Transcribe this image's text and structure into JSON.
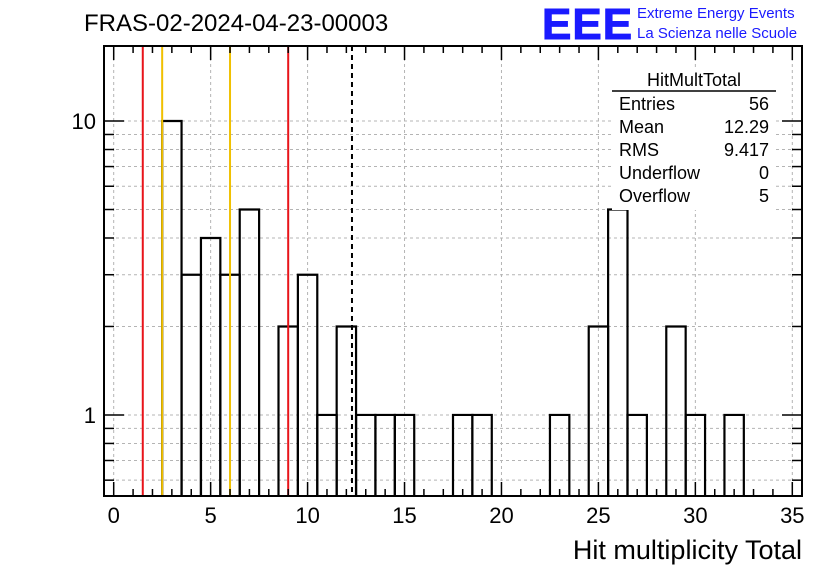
{
  "title": "FRAS-02-2024-04-23-00003",
  "logo": {
    "mark": "EEE",
    "line1": "Extreme Energy Events",
    "line2": "La Scienza nelle Scuole",
    "color": "#1a1aff"
  },
  "stats": {
    "name": "HitMultTotal",
    "rows": [
      {
        "label": "Entries",
        "value": "56"
      },
      {
        "label": "Mean",
        "value": "12.29"
      },
      {
        "label": "RMS",
        "value": "9.417"
      },
      {
        "label": "Underflow",
        "value": "0"
      },
      {
        "label": "Overflow",
        "value": "5"
      }
    ]
  },
  "chart_data": {
    "type": "histogram",
    "title": "FRAS-02-2024-04-23-00003",
    "xlabel": "Hit multiplicity Total",
    "ylabel": "",
    "x_scale": "linear",
    "y_scale": "log",
    "xlim": [
      -0.5,
      35.5
    ],
    "ylim": [
      0.53,
      18
    ],
    "grid": true,
    "x_ticks": [
      0,
      5,
      10,
      15,
      20,
      25,
      30,
      35
    ],
    "y_ticks": [
      1,
      10
    ],
    "bin_width": 1,
    "bins": [
      {
        "x0": 2.5,
        "x1": 3.5,
        "count": 10
      },
      {
        "x0": 3.5,
        "x1": 4.5,
        "count": 3
      },
      {
        "x0": 4.5,
        "x1": 5.5,
        "count": 4
      },
      {
        "x0": 5.5,
        "x1": 6.5,
        "count": 3
      },
      {
        "x0": 6.5,
        "x1": 7.5,
        "count": 5
      },
      {
        "x0": 8.5,
        "x1": 9.5,
        "count": 2
      },
      {
        "x0": 9.5,
        "x1": 10.5,
        "count": 3
      },
      {
        "x0": 10.5,
        "x1": 11.5,
        "count": 1
      },
      {
        "x0": 11.5,
        "x1": 12.5,
        "count": 2
      },
      {
        "x0": 12.5,
        "x1": 13.5,
        "count": 1
      },
      {
        "x0": 13.5,
        "x1": 14.5,
        "count": 1
      },
      {
        "x0": 14.5,
        "x1": 15.5,
        "count": 1
      },
      {
        "x0": 17.5,
        "x1": 18.5,
        "count": 1
      },
      {
        "x0": 18.5,
        "x1": 19.5,
        "count": 1
      },
      {
        "x0": 22.5,
        "x1": 23.5,
        "count": 1
      },
      {
        "x0": 24.5,
        "x1": 25.5,
        "count": 2
      },
      {
        "x0": 25.5,
        "x1": 26.5,
        "count": 5
      },
      {
        "x0": 26.5,
        "x1": 27.5,
        "count": 1
      },
      {
        "x0": 28.5,
        "x1": 29.5,
        "count": 2
      },
      {
        "x0": 29.5,
        "x1": 30.5,
        "count": 1
      },
      {
        "x0": 31.5,
        "x1": 32.5,
        "count": 1
      }
    ],
    "vertical_lines": [
      {
        "x": 1.5,
        "color": "#e8141a",
        "style": "solid"
      },
      {
        "x": 2.5,
        "color": "#f0c000",
        "style": "solid"
      },
      {
        "x": 6.0,
        "color": "#f0c000",
        "style": "solid"
      },
      {
        "x": 9.0,
        "color": "#e8141a",
        "style": "solid"
      },
      {
        "x": 12.29,
        "color": "#000000",
        "style": "dashed"
      }
    ]
  }
}
